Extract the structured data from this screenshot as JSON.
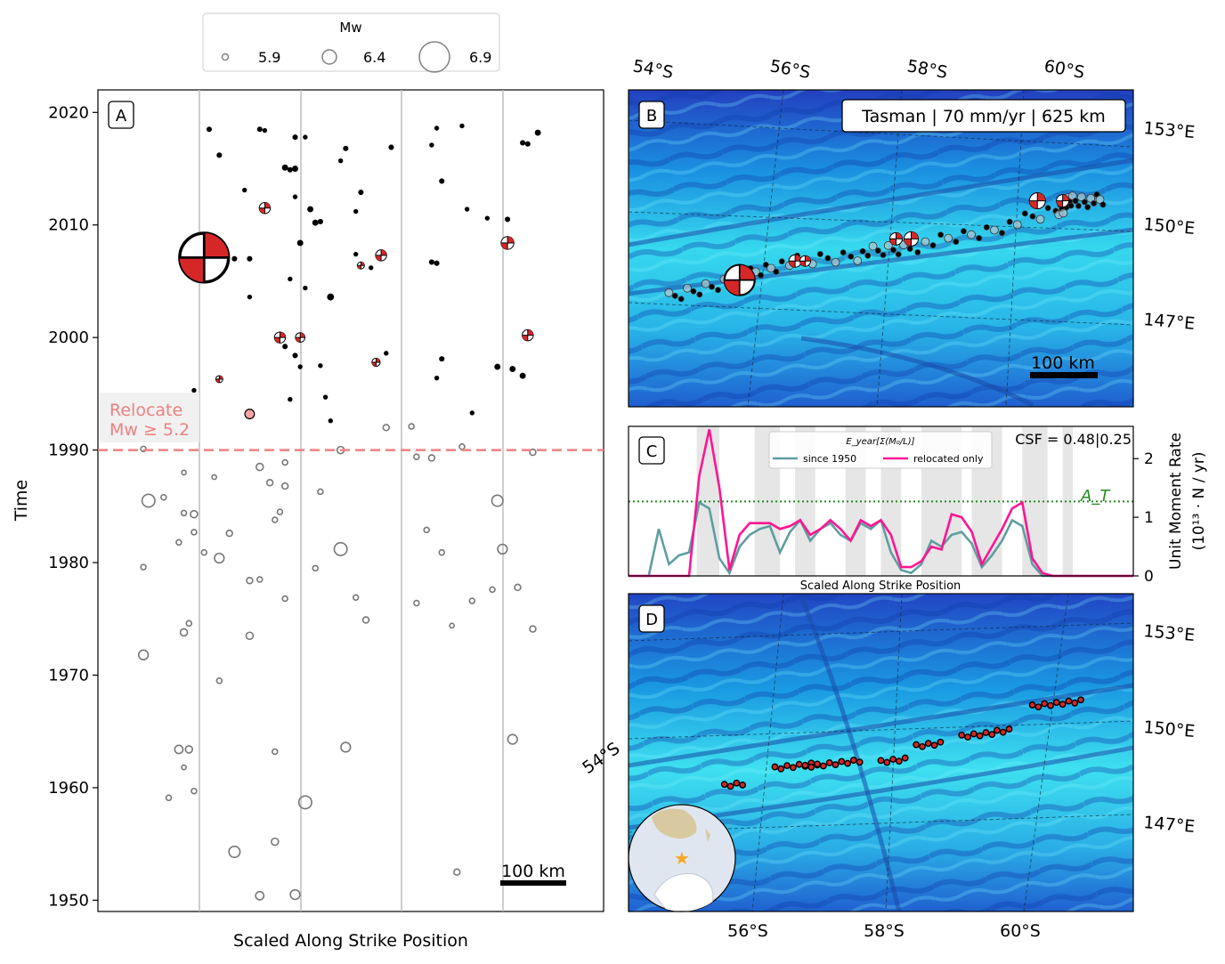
{
  "colors": {
    "relocate": "#f08080",
    "since1950": "#5f9ea0",
    "relocated": "#ff1493",
    "threshold": "#228b22",
    "focal": "#d62728",
    "ocean_deep": "#2b4fc4",
    "ocean_mid": "#1fa8e0",
    "ocean_light": "#3fe6f0"
  },
  "legend": {
    "title": "Mw",
    "entries": [
      {
        "label": "5.9",
        "mw": 5.9
      },
      {
        "label": "6.4",
        "mw": 6.4
      },
      {
        "label": "6.9",
        "mw": 6.9
      }
    ]
  },
  "panel_a": {
    "label": "A",
    "relocate_label_1": "Relocate",
    "relocate_label_2": "Mw ≥ 5.2",
    "scalebar": "100 km"
  },
  "panel_b": {
    "label": "B",
    "info_box": "Tasman | 70 mm/yr | 625 km",
    "scalebar": "100 km",
    "top_labels": [
      "54°S",
      "56°S",
      "58°S",
      "60°S"
    ],
    "right_labels": [
      "153°E",
      "150°E",
      "147°E"
    ]
  },
  "panel_c": {
    "label": "C",
    "legend_title": "E_year[Σ(M₀/L)]",
    "csf": "CSF = 0.48|0.25",
    "threshold_label": "A_T",
    "xlabel": "Scaled Along Strike Position",
    "ylabel_1": "Unit Moment Rate",
    "ylabel_2": "(10¹³ · N / yr)"
  },
  "panel_d": {
    "label": "D",
    "bottom_labels": [
      "56°S",
      "58°S",
      "60°S"
    ],
    "left_label": "54°S",
    "right_labels": [
      "153°E",
      "150°E",
      "147°E"
    ]
  },
  "chart_data": [
    {
      "panel": "A",
      "type": "scatter",
      "xlabel": "Scaled Along Strike Position",
      "ylabel": "Time",
      "ylim": [
        1949,
        2022
      ],
      "yticks": [
        1950,
        1960,
        1970,
        1980,
        1990,
        2000,
        2010,
        2020
      ],
      "relocation_threshold_year": 1990,
      "series": [
        {
          "name": "relocated",
          "points": [
            [
              0.22,
              2018.5,
              5.3
            ],
            [
              0.24,
              2016.2,
              5.3
            ],
            [
              0.29,
              2013.1,
              5.2
            ],
            [
              0.32,
              2018.5,
              5.3
            ],
            [
              0.33,
              2018.4,
              5.2
            ],
            [
              0.39,
              2017.8,
              5.3
            ],
            [
              0.41,
              2017.8,
              5.2
            ],
            [
              0.37,
              2015.1,
              5.4
            ],
            [
              0.39,
              2015.0,
              5.4
            ],
            [
              0.38,
              2014.9,
              5.3
            ],
            [
              0.39,
              2012.5,
              5.2
            ],
            [
              0.42,
              2011.4,
              5.4
            ],
            [
              0.43,
              2010.2,
              5.4
            ],
            [
              0.44,
              2010.3,
              5.3
            ],
            [
              0.48,
              2015.7,
              5.2
            ],
            [
              0.52,
              2012.9,
              5.3
            ],
            [
              0.51,
              2011.2,
              5.2
            ],
            [
              0.49,
              2016.8,
              5.3
            ],
            [
              0.58,
              2016.9,
              5.3
            ],
            [
              0.66,
              2017.1,
              5.2
            ],
            [
              0.67,
              2018.6,
              5.2
            ],
            [
              0.68,
              2013.9,
              5.3
            ],
            [
              0.72,
              2018.8,
              5.2
            ],
            [
              0.73,
              2011.4,
              5.2
            ],
            [
              0.77,
              2010.6,
              5.2
            ],
            [
              0.81,
              2010.5,
              5.3
            ],
            [
              0.84,
              2017.3,
              5.3
            ],
            [
              0.85,
              2017.2,
              5.3
            ],
            [
              0.87,
              2018.2,
              5.4
            ],
            [
              0.24,
              2008.3,
              5.3
            ],
            [
              0.27,
              2007.0,
              5.3
            ],
            [
              0.3,
              2007.0,
              5.3
            ],
            [
              0.38,
              2005.2,
              5.2
            ],
            [
              0.4,
              2008.4,
              5.4
            ],
            [
              0.46,
              2003.6,
              5.5
            ],
            [
              0.41,
              2004.4,
              5.2
            ],
            [
              0.51,
              2007.4,
              5.2
            ],
            [
              0.54,
              2006.2,
              5.2
            ],
            [
              0.66,
              2006.7,
              5.3
            ],
            [
              0.67,
              2006.6,
              5.3
            ],
            [
              0.3,
              2003.6,
              5.2
            ],
            [
              0.37,
              1999.2,
              5.3
            ],
            [
              0.39,
              1998.4,
              5.3
            ],
            [
              0.4,
              1997.4,
              5.2
            ],
            [
              0.44,
              1997.5,
              5.2
            ],
            [
              0.57,
              1998.6,
              5.2
            ],
            [
              0.68,
              1998.1,
              5.3
            ],
            [
              0.67,
              1996.4,
              5.2
            ],
            [
              0.79,
              1997.4,
              5.4
            ],
            [
              0.82,
              1997.2,
              5.4
            ],
            [
              0.84,
              1996.6,
              5.4
            ],
            [
              0.19,
              1995.3,
              5.2
            ],
            [
              0.45,
              1994.7,
              5.2
            ],
            [
              0.38,
              1994.5,
              5.2
            ],
            [
              0.74,
              1993.3,
              5.2
            ],
            [
              0.46,
              1992.6,
              5.2
            ]
          ]
        },
        {
          "name": "focal_mechanisms",
          "points": [
            [
              0.21,
              2007.1,
              6.9
            ],
            [
              0.33,
              2011.5,
              5.9
            ],
            [
              0.36,
              2000.0,
              5.9
            ],
            [
              0.4,
              2000.0,
              5.8
            ],
            [
              0.52,
              2006.4,
              5.6
            ],
            [
              0.56,
              2007.3,
              5.9
            ],
            [
              0.55,
              1997.8,
              5.7
            ],
            [
              0.81,
              2008.4,
              6.0
            ],
            [
              0.85,
              2000.2,
              5.9
            ],
            [
              0.24,
              1996.3,
              5.6
            ],
            [
              0.3,
              1993.2,
              5.8
            ]
          ]
        },
        {
          "name": "pre-1990",
          "points": [
            [
              0.09,
              1990.1,
              5.4
            ],
            [
              0.17,
              1988.0,
              5.3
            ],
            [
              0.23,
              1987.6,
              5.3
            ],
            [
              0.32,
              1988.5,
              5.6
            ],
            [
              0.34,
              1987.1,
              5.5
            ],
            [
              0.37,
              1986.8,
              5.5
            ],
            [
              0.37,
              1988.9,
              5.4
            ],
            [
              0.44,
              1986.3,
              5.4
            ],
            [
              0.48,
              1990.0,
              5.6
            ],
            [
              0.57,
              1992.0,
              5.5
            ],
            [
              0.62,
              1992.1,
              5.4
            ],
            [
              0.63,
              1989.4,
              5.4
            ],
            [
              0.66,
              1989.3,
              5.5
            ],
            [
              0.72,
              1990.3,
              5.4
            ],
            [
              0.86,
              1989.8,
              5.5
            ],
            [
              0.1,
              1985.5,
              6.0
            ],
            [
              0.13,
              1985.8,
              5.4
            ],
            [
              0.19,
              1984.3,
              5.6
            ],
            [
              0.19,
              1982.7,
              5.4
            ],
            [
              0.16,
              1981.8,
              5.4
            ],
            [
              0.17,
              1984.4,
              5.4
            ],
            [
              0.21,
              1980.9,
              5.4
            ],
            [
              0.24,
              1980.4,
              5.8
            ],
            [
              0.26,
              1982.6,
              5.5
            ],
            [
              0.3,
              1978.4,
              5.5
            ],
            [
              0.32,
              1978.5,
              5.4
            ],
            [
              0.35,
              1983.8,
              5.4
            ],
            [
              0.36,
              1984.5,
              5.4
            ],
            [
              0.37,
              1976.8,
              5.4
            ],
            [
              0.43,
              1979.5,
              5.4
            ],
            [
              0.48,
              1981.2,
              6.0
            ],
            [
              0.51,
              1976.9,
              5.4
            ],
            [
              0.53,
              1974.9,
              5.5
            ],
            [
              0.63,
              1976.4,
              5.4
            ],
            [
              0.65,
              1982.9,
              5.4
            ],
            [
              0.68,
              1980.9,
              5.4
            ],
            [
              0.7,
              1974.4,
              5.3
            ],
            [
              0.74,
              1976.6,
              5.4
            ],
            [
              0.78,
              1977.6,
              5.4
            ],
            [
              0.79,
              1985.5,
              5.9
            ],
            [
              0.8,
              1981.2,
              5.8
            ],
            [
              0.83,
              1977.8,
              5.5
            ],
            [
              0.86,
              1974.1,
              5.5
            ],
            [
              0.09,
              1979.6,
              5.4
            ],
            [
              0.09,
              1971.8,
              5.8
            ],
            [
              0.17,
              1973.8,
              5.6
            ],
            [
              0.18,
              1974.6,
              5.4
            ],
            [
              0.24,
              1969.5,
              5.4
            ],
            [
              0.3,
              1973.5,
              5.6
            ],
            [
              0.16,
              1963.4,
              5.7
            ],
            [
              0.18,
              1963.4,
              5.6
            ],
            [
              0.17,
              1961.8,
              5.3
            ],
            [
              0.19,
              1959.7,
              5.4
            ],
            [
              0.14,
              1959.1,
              5.4
            ],
            [
              0.35,
              1963.2,
              5.4
            ],
            [
              0.41,
              1958.7,
              6.0
            ],
            [
              0.49,
              1963.6,
              5.8
            ],
            [
              0.82,
              1964.3,
              5.8
            ],
            [
              0.27,
              1954.3,
              5.9
            ],
            [
              0.35,
              1955.2,
              5.6
            ],
            [
              0.32,
              1950.4,
              5.7
            ],
            [
              0.39,
              1950.5,
              5.8
            ],
            [
              0.71,
              1952.5,
              5.5
            ]
          ]
        }
      ]
    },
    {
      "panel": "C",
      "type": "line",
      "xlabel": "Scaled Along Strike Position",
      "ylabel": "Unit Moment Rate (10¹³ · N / yr)",
      "ylim": [
        0,
        2.55
      ],
      "yticks": [
        0,
        1,
        2
      ],
      "threshold": 1.27,
      "series": [
        {
          "name": "since 1950",
          "x": [
            0,
            0.04,
            0.06,
            0.08,
            0.1,
            0.12,
            0.14,
            0.16,
            0.18,
            0.2,
            0.22,
            0.24,
            0.26,
            0.28,
            0.3,
            0.32,
            0.34,
            0.36,
            0.38,
            0.4,
            0.42,
            0.44,
            0.46,
            0.48,
            0.5,
            0.52,
            0.54,
            0.56,
            0.58,
            0.6,
            0.62,
            0.64,
            0.66,
            0.68,
            0.7,
            0.72,
            0.74,
            0.76,
            0.78,
            0.8,
            0.82,
            0.84,
            0.86,
            0.88,
            0.9,
            0.92,
            1.0
          ],
          "values": [
            0,
            0,
            0.8,
            0.2,
            0.35,
            0.4,
            1.25,
            1.15,
            0.3,
            0.05,
            0.5,
            0.7,
            0.8,
            0.85,
            0.4,
            0.75,
            0.95,
            0.6,
            0.8,
            0.9,
            0.7,
            0.6,
            0.9,
            0.8,
            0.95,
            0.4,
            0.1,
            0.05,
            0.2,
            0.6,
            0.5,
            0.7,
            0.75,
            0.55,
            0.15,
            0.35,
            0.6,
            0.95,
            0.85,
            0.2,
            0,
            0,
            0,
            0,
            0,
            0,
            0
          ]
        },
        {
          "name": "relocated only",
          "x": [
            0,
            0.12,
            0.14,
            0.16,
            0.18,
            0.2,
            0.22,
            0.24,
            0.26,
            0.28,
            0.3,
            0.32,
            0.34,
            0.36,
            0.38,
            0.4,
            0.42,
            0.44,
            0.46,
            0.48,
            0.5,
            0.52,
            0.54,
            0.56,
            0.58,
            0.6,
            0.62,
            0.64,
            0.66,
            0.68,
            0.7,
            0.72,
            0.74,
            0.76,
            0.78,
            0.8,
            0.82,
            0.84,
            0.86,
            0.88,
            1.0
          ],
          "values": [
            0,
            0,
            1.7,
            2.5,
            1.5,
            0.1,
            0.7,
            0.9,
            0.9,
            0.9,
            0.8,
            0.85,
            0.95,
            0.7,
            0.8,
            0.95,
            0.8,
            0.6,
            0.95,
            0.85,
            0.95,
            0.7,
            0.15,
            0.15,
            0.25,
            0.5,
            0.45,
            1.05,
            1.0,
            0.75,
            0.2,
            0.5,
            0.8,
            1.15,
            1.25,
            0.3,
            0.05,
            0,
            0,
            0,
            0
          ]
        }
      ]
    }
  ]
}
